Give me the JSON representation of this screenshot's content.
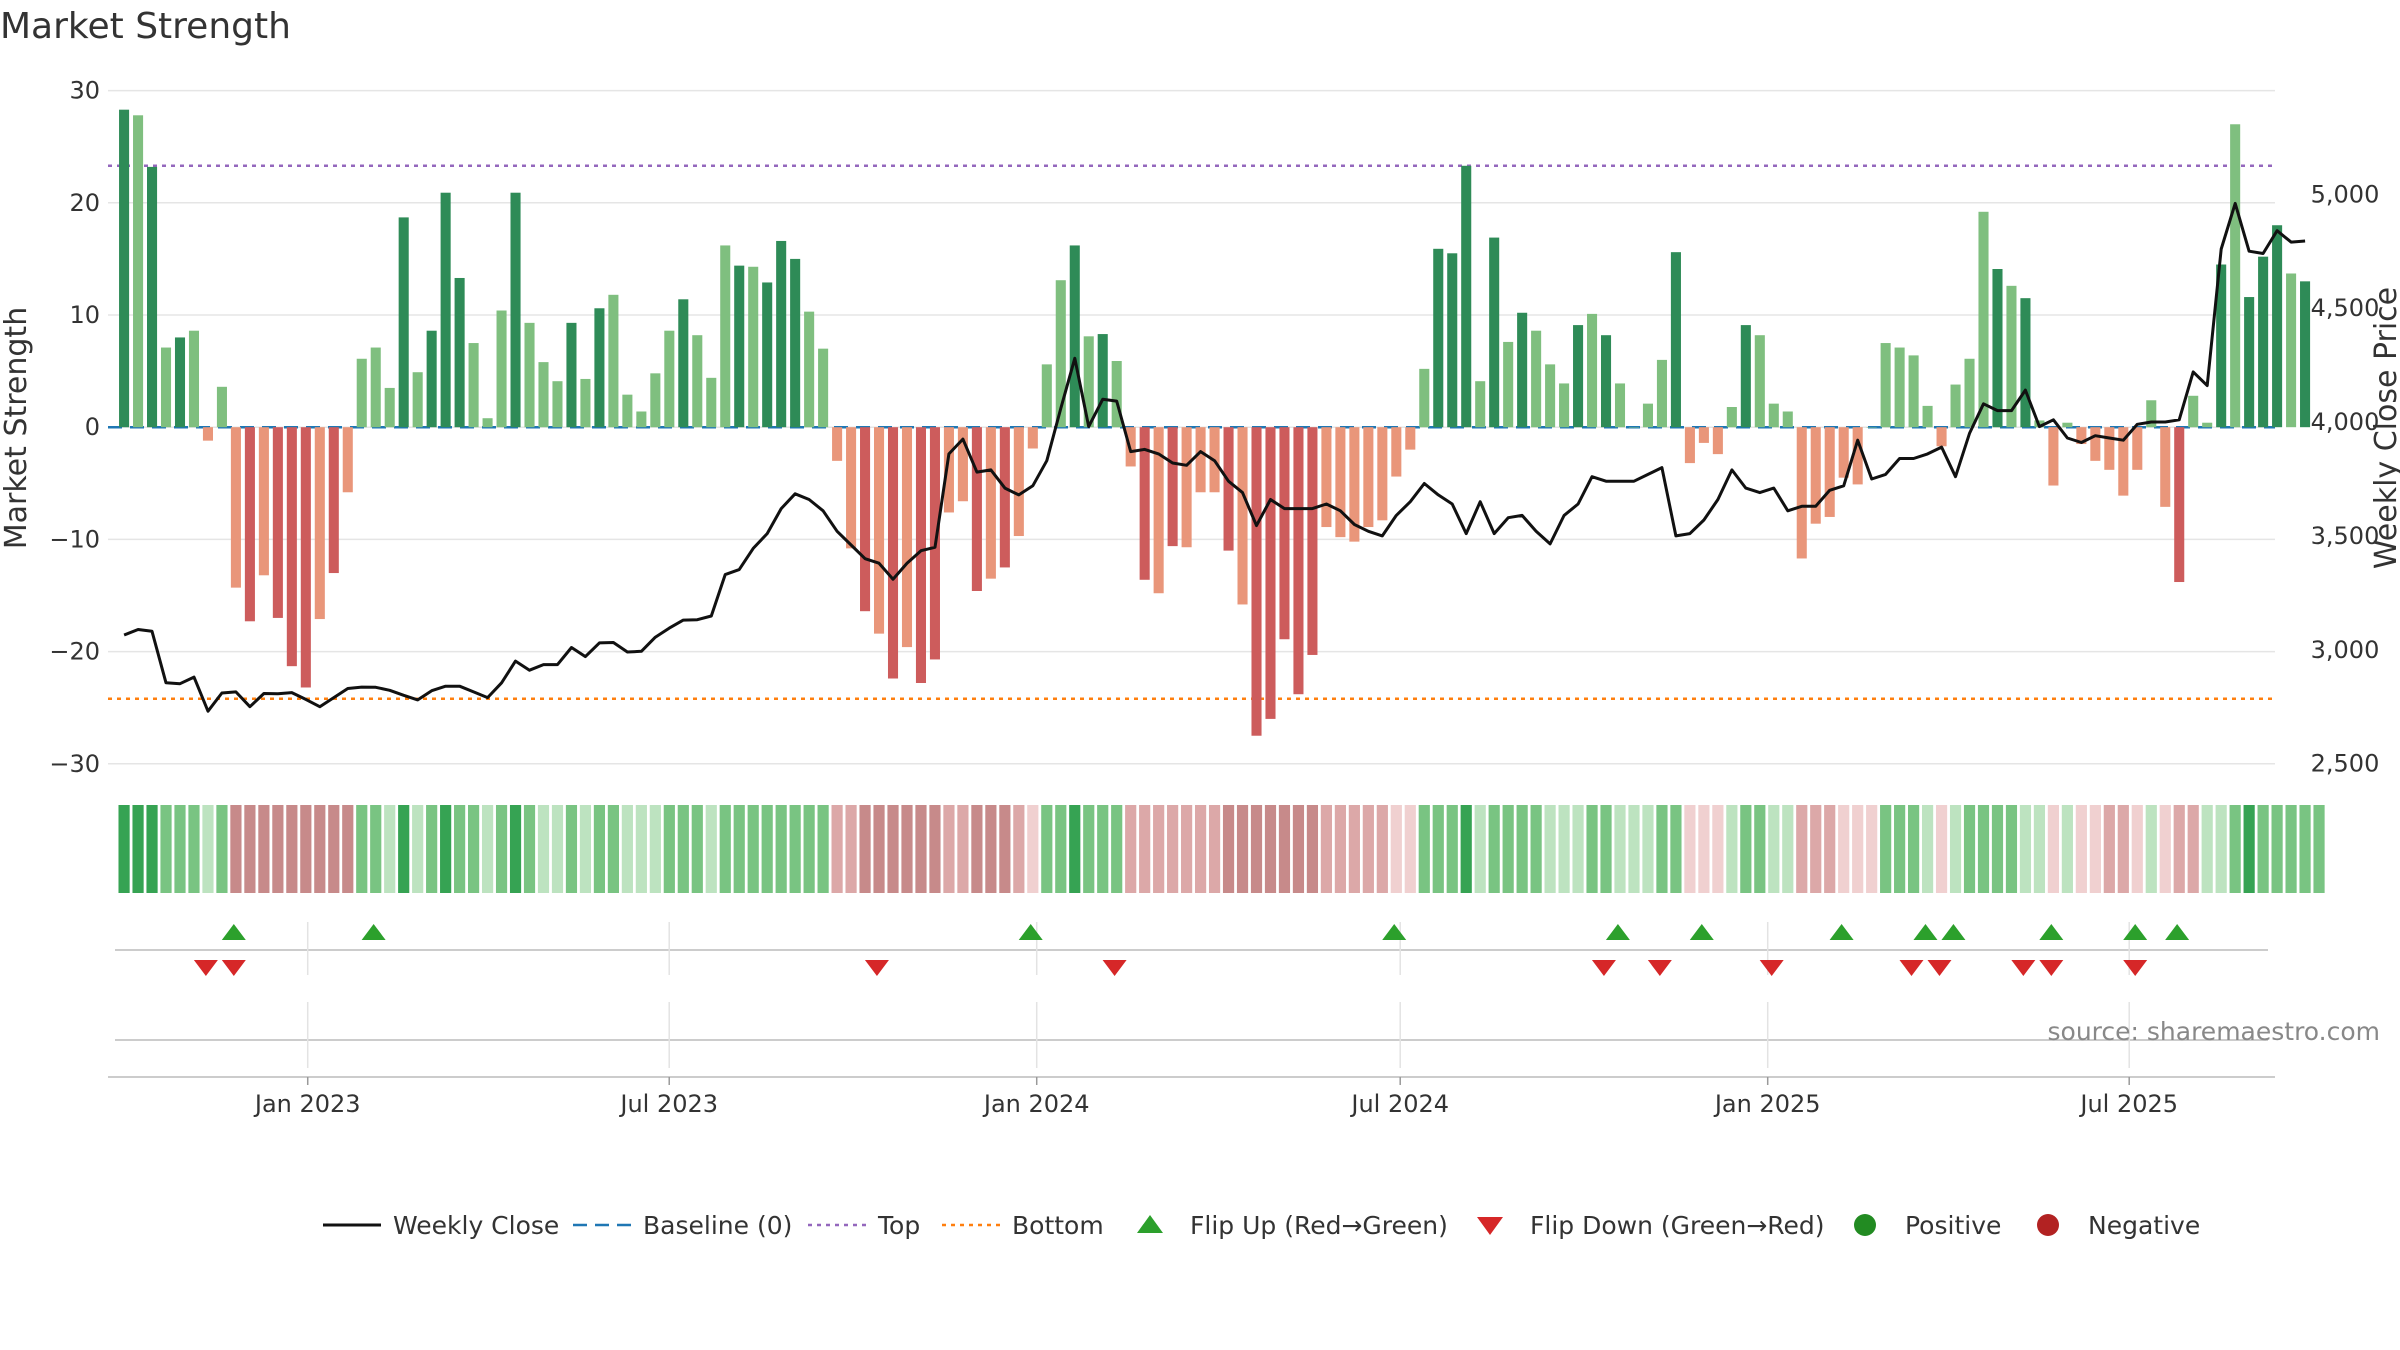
{
  "chart_data": {
    "type": "bar",
    "title": "Market Strength",
    "ylabel": "Market Strength",
    "y2label": "Weekly Close Price",
    "ylim": [
      -31,
      30.5
    ],
    "y2lim": [
      2450,
      5480
    ],
    "yticks": [
      {
        "v": 30,
        "label": "30"
      },
      {
        "v": 20,
        "label": "20"
      },
      {
        "v": 10,
        "label": "10"
      },
      {
        "v": 0,
        "label": "0"
      },
      {
        "v": -10,
        "label": "−10"
      },
      {
        "v": -20,
        "label": "−20"
      },
      {
        "v": -30,
        "label": "−30"
      }
    ],
    "y2ticks": [
      {
        "v": 5000,
        "label": "5,000"
      },
      {
        "v": 4500,
        "label": "4,500"
      },
      {
        "v": 4000,
        "label": "4,000"
      },
      {
        "v": 3500,
        "label": "3,500"
      },
      {
        "v": 3000,
        "label": "3,000"
      },
      {
        "v": 2500,
        "label": "2,500"
      }
    ],
    "xrange": [
      "2022-09-23",
      "2025-09-12"
    ],
    "xticks": [
      {
        "date": "2023-01-01",
        "label": "Jan 2023"
      },
      {
        "date": "2023-07-01",
        "label": "Jul 2023"
      },
      {
        "date": "2024-01-01",
        "label": "Jan 2024"
      },
      {
        "date": "2024-07-01",
        "label": "Jul 2024"
      },
      {
        "date": "2025-01-01",
        "label": "Jan 2025"
      },
      {
        "date": "2025-07-01",
        "label": "Jul 2025"
      }
    ],
    "top_level": 23.3,
    "bottom_level": -24.2,
    "start_week": "2022-09-30",
    "market_strength": [
      28.3,
      27.8,
      23.2,
      7.1,
      8.0,
      8.6,
      -1.2,
      3.6,
      -14.3,
      -17.3,
      -13.2,
      -17.0,
      -21.3,
      -23.2,
      -17.1,
      -13.0,
      -5.8,
      6.1,
      7.1,
      3.5,
      18.7,
      4.9,
      8.6,
      20.9,
      13.3,
      7.5,
      0.8,
      10.4,
      20.9,
      9.3,
      5.8,
      4.1,
      9.3,
      4.3,
      10.6,
      11.8,
      2.9,
      1.4,
      4.8,
      8.6,
      11.4,
      8.2,
      4.4,
      16.2,
      14.4,
      14.3,
      12.9,
      16.6,
      15.0,
      10.3,
      7.0,
      -3.0,
      -10.8,
      -16.4,
      -18.4,
      -22.4,
      -19.6,
      -22.8,
      -20.7,
      -7.6,
      -6.6,
      -14.6,
      -13.5,
      -12.5,
      -9.7,
      -1.9,
      5.6,
      13.1,
      16.2,
      8.1,
      8.3,
      5.9,
      -3.5,
      -13.6,
      -14.8,
      -10.6,
      -10.7,
      -5.8,
      -5.8,
      -11.0,
      -15.8,
      -27.5,
      -26.0,
      -18.9,
      -23.8,
      -20.3,
      -8.9,
      -9.8,
      -10.2,
      -8.9,
      -8.3,
      -4.4,
      -2.0,
      5.2,
      15.9,
      15.5,
      23.3,
      4.1,
      16.9,
      7.6,
      10.2,
      8.6,
      5.6,
      3.9,
      9.1,
      10.1,
      8.2,
      3.9,
      0.0,
      2.1,
      6.0,
      15.6,
      -3.2,
      -1.4,
      -2.4,
      1.8,
      9.1,
      8.2,
      2.1,
      1.4,
      -11.7,
      -8.6,
      -8.0,
      -4.5,
      -5.1,
      0.0,
      7.5,
      7.1,
      6.4,
      1.9,
      -1.7,
      3.8,
      6.1,
      19.2,
      14.1,
      12.6,
      11.5,
      0.6,
      -5.2,
      0.4,
      -1.5,
      -3.0,
      -3.8,
      -6.1,
      -3.8,
      2.4,
      -7.1,
      -13.8,
      2.8,
      0.4,
      14.5,
      27.0,
      11.6,
      15.2,
      18.0,
      13.7,
      13.0
    ],
    "weekly_close": [
      3065,
      3089,
      3081,
      2855,
      2851,
      2880,
      2730,
      2810,
      2815,
      2750,
      2808,
      2807,
      2812,
      2782,
      2750,
      2790,
      2830,
      2836,
      2835,
      2822,
      2800,
      2780,
      2820,
      2840,
      2840,
      2815,
      2790,
      2855,
      2950,
      2910,
      2935,
      2935,
      3010,
      2970,
      3030,
      3032,
      2990,
      2993,
      3055,
      3095,
      3130,
      3132,
      3148,
      3330,
      3352,
      3445,
      3510,
      3620,
      3685,
      3660,
      3610,
      3520,
      3460,
      3400,
      3380,
      3310,
      3380,
      3435,
      3450,
      3860,
      3925,
      3780,
      3790,
      3710,
      3680,
      3720,
      3830,
      4060,
      4280,
      3980,
      4100,
      4092,
      3870,
      3880,
      3860,
      3820,
      3810,
      3870,
      3830,
      3740,
      3690,
      3545,
      3660,
      3620,
      3620,
      3620,
      3640,
      3610,
      3550,
      3520,
      3500,
      3590,
      3650,
      3730,
      3680,
      3640,
      3510,
      3650,
      3510,
      3580,
      3590,
      3520,
      3465,
      3590,
      3640,
      3760,
      3740,
      3740,
      3740,
      3770,
      3800,
      3500,
      3510,
      3570,
      3660,
      3790,
      3710,
      3690,
      3710,
      3610,
      3630,
      3630,
      3700,
      3720,
      3920,
      3750,
      3770,
      3840,
      3840,
      3860,
      3890,
      3760,
      3950,
      4080,
      4050,
      4050,
      4140,
      3980,
      4010,
      3930,
      3910,
      3940,
      3930,
      3920,
      3990,
      4000,
      4000,
      4010,
      4220,
      4160,
      4760,
      4960,
      4750,
      4740,
      4840,
      4790,
      4795
    ],
    "top_strip": [
      1,
      1,
      1,
      2,
      2,
      2,
      3,
      2,
      4,
      4,
      4,
      4,
      4,
      4,
      4,
      4,
      4,
      2,
      2,
      3,
      1,
      3,
      2,
      1,
      2,
      2,
      3,
      2,
      1,
      2,
      3,
      3,
      2,
      3,
      2,
      2,
      3,
      3,
      3,
      2,
      2,
      2,
      3,
      2,
      2,
      2,
      2,
      2,
      2,
      2,
      2,
      5,
      5,
      4,
      4,
      4,
      4,
      4,
      4,
      5,
      5,
      4,
      4,
      4,
      5,
      6,
      2,
      2,
      1,
      2,
      2,
      2,
      5,
      5,
      5,
      5,
      5,
      5,
      5,
      4,
      4,
      4,
      4,
      4,
      4,
      4,
      5,
      5,
      5,
      5,
      5,
      6,
      6,
      2,
      2,
      2,
      1,
      3,
      2,
      2,
      2,
      2,
      3,
      3,
      3,
      2,
      2,
      3,
      3,
      3,
      2,
      2,
      6,
      6,
      6,
      3,
      2,
      2,
      3,
      3,
      5,
      5,
      5,
      6,
      6,
      6,
      2,
      2,
      2,
      3,
      6,
      3,
      2,
      2,
      2,
      2,
      3,
      3,
      6,
      3,
      6,
      6,
      5,
      5,
      6,
      3,
      6,
      5,
      5,
      3,
      3,
      2,
      1,
      2,
      2,
      2,
      2,
      2
    ],
    "flip_up_dates": [
      "2022-11-25",
      "2023-02-03",
      "2023-12-29",
      "2024-06-28",
      "2024-10-18",
      "2024-11-29",
      "2025-02-07",
      "2025-03-21",
      "2025-04-04",
      "2025-05-23",
      "2025-07-04",
      "2025-07-25"
    ],
    "flip_down_dates": [
      "2022-11-11",
      "2022-11-25",
      "2023-10-13",
      "2024-02-09",
      "2024-10-11",
      "2024-11-08",
      "2025-01-03",
      "2025-03-14",
      "2025-03-28",
      "2025-05-09",
      "2025-05-23",
      "2025-07-04"
    ],
    "legend": [
      "Weekly Close",
      "Baseline (0)",
      "Top",
      "Bottom",
      "Flip Up (Red→Green)",
      "Flip Down (Green→Red)",
      "Positive",
      "Negative"
    ],
    "legend_position": "bottom-center",
    "colors": {
      "pos_strong": "#2e8b57",
      "pos_weak": "#7fbf7f",
      "neg_strong": "#cd5c5c",
      "neg_weak": "#e9967a",
      "line": "#111111",
      "baseline": "#1f77b4",
      "top": "#9467bd",
      "bottom": "#ff7f0e",
      "flip_up": "#2ca02c",
      "flip_down": "#d62728",
      "positive": "#228b22",
      "negative": "#b22222",
      "grid": "#e5e5e5",
      "strip": [
        "",
        "#36a353",
        "#79c482",
        "#bde3c0",
        "#c78a8a",
        "#dca8a8",
        "#f0d0d0"
      ]
    },
    "grid": true
  },
  "source": "source: sharemaestro.com"
}
